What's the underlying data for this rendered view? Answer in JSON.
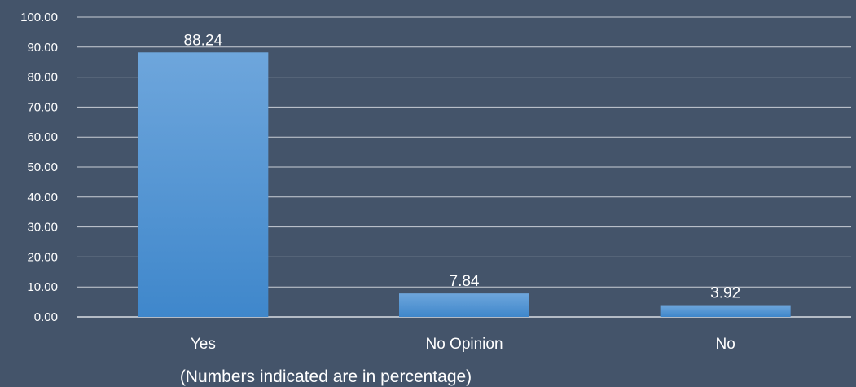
{
  "chart_data": {
    "type": "bar",
    "categories": [
      "Yes",
      "No Opinion",
      "No"
    ],
    "values": [
      88.24,
      7.84,
      3.92
    ],
    "data_labels": [
      "88.24",
      "7.84",
      "3.92"
    ],
    "ylim": [
      0,
      100
    ],
    "y_ticks": [
      "0.00",
      "10.00",
      "20.00",
      "30.00",
      "40.00",
      "50.00",
      "60.00",
      "70.00",
      "80.00",
      "90.00",
      "100.00"
    ],
    "grid": true,
    "legend": "none",
    "note": "(Numbers indicated are in percentage)"
  },
  "colors": {
    "background": "#44546a",
    "bar_top": "#6ea6dc",
    "bar_bottom": "#3f87cb",
    "text": "#ffffff"
  }
}
